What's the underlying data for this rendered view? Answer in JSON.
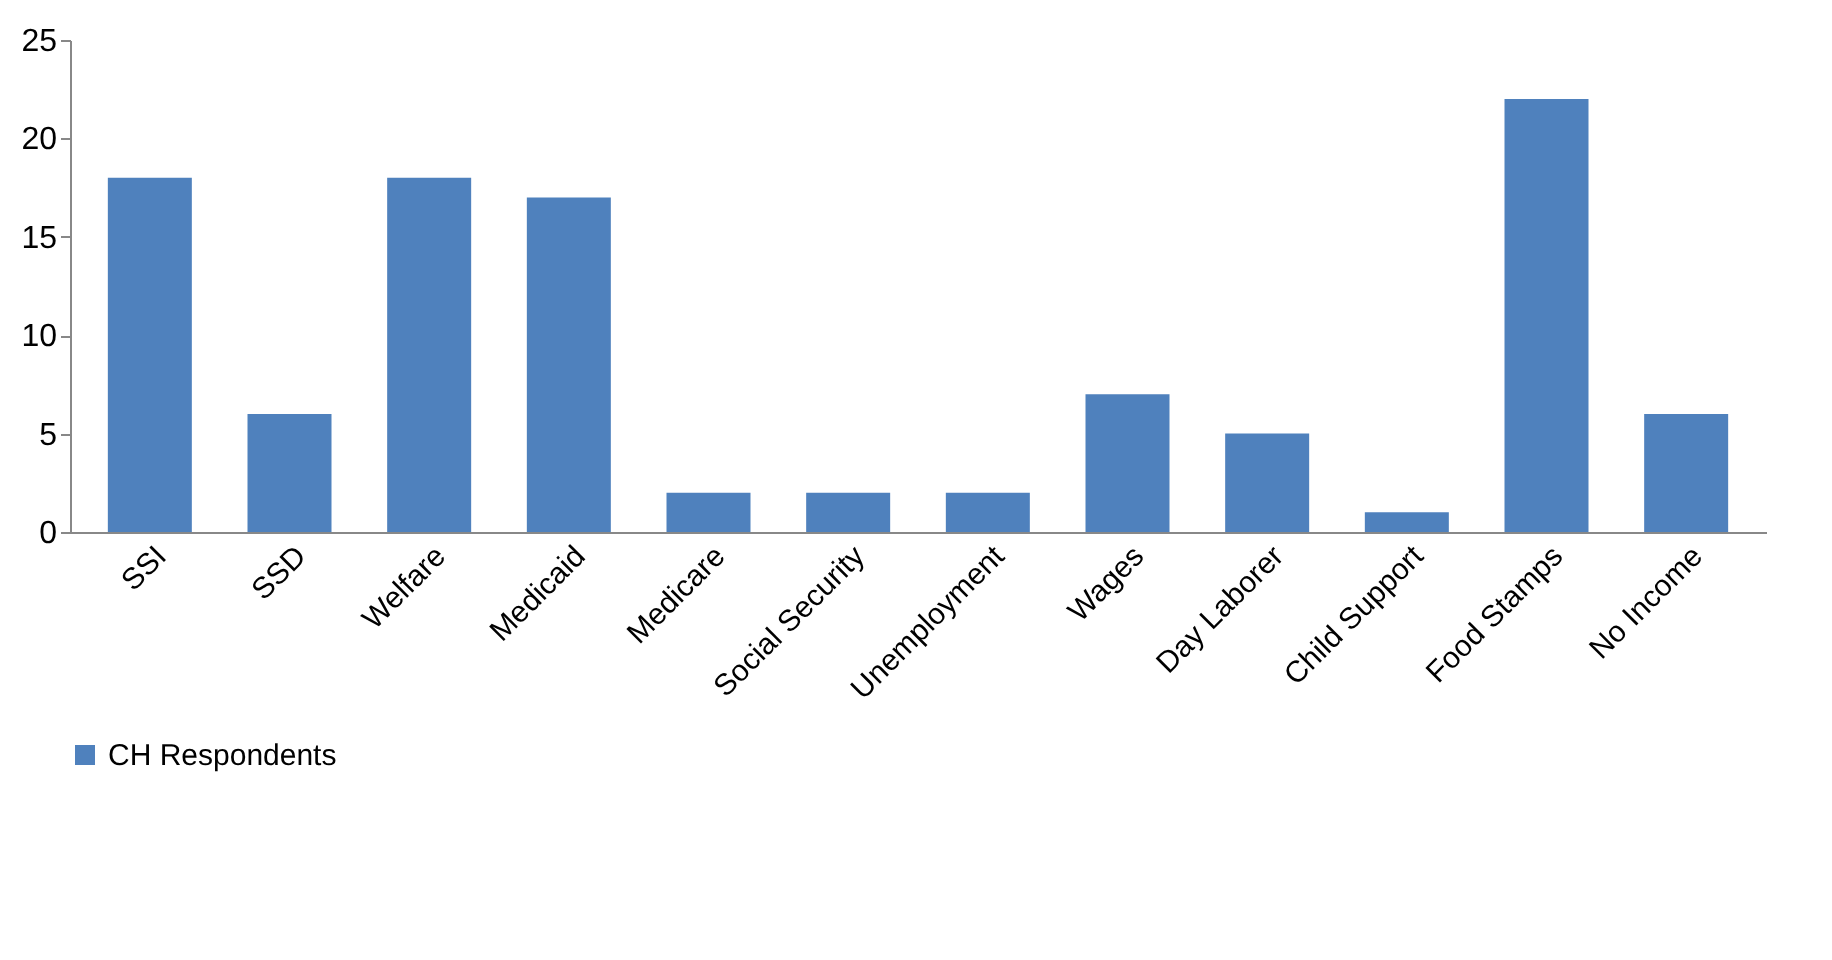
{
  "chart_data": {
    "type": "bar",
    "categories": [
      "SSI",
      "SSD",
      "Welfare",
      "Medicaid",
      "Medicare",
      "Social Security",
      "Unemployment",
      "Wages",
      "Day Laborer",
      "Child Support",
      "Food Stamps",
      "No Income"
    ],
    "series": [
      {
        "name": "CH Respondents",
        "color": "#4f81bd",
        "values": [
          18,
          6,
          18,
          17,
          2,
          2,
          2,
          7,
          5,
          1,
          22,
          6
        ]
      }
    ],
    "ylim": [
      0,
      25
    ],
    "yticks": [
      0,
      5,
      10,
      15,
      20,
      25
    ],
    "grid": false,
    "legend": "bottom"
  }
}
